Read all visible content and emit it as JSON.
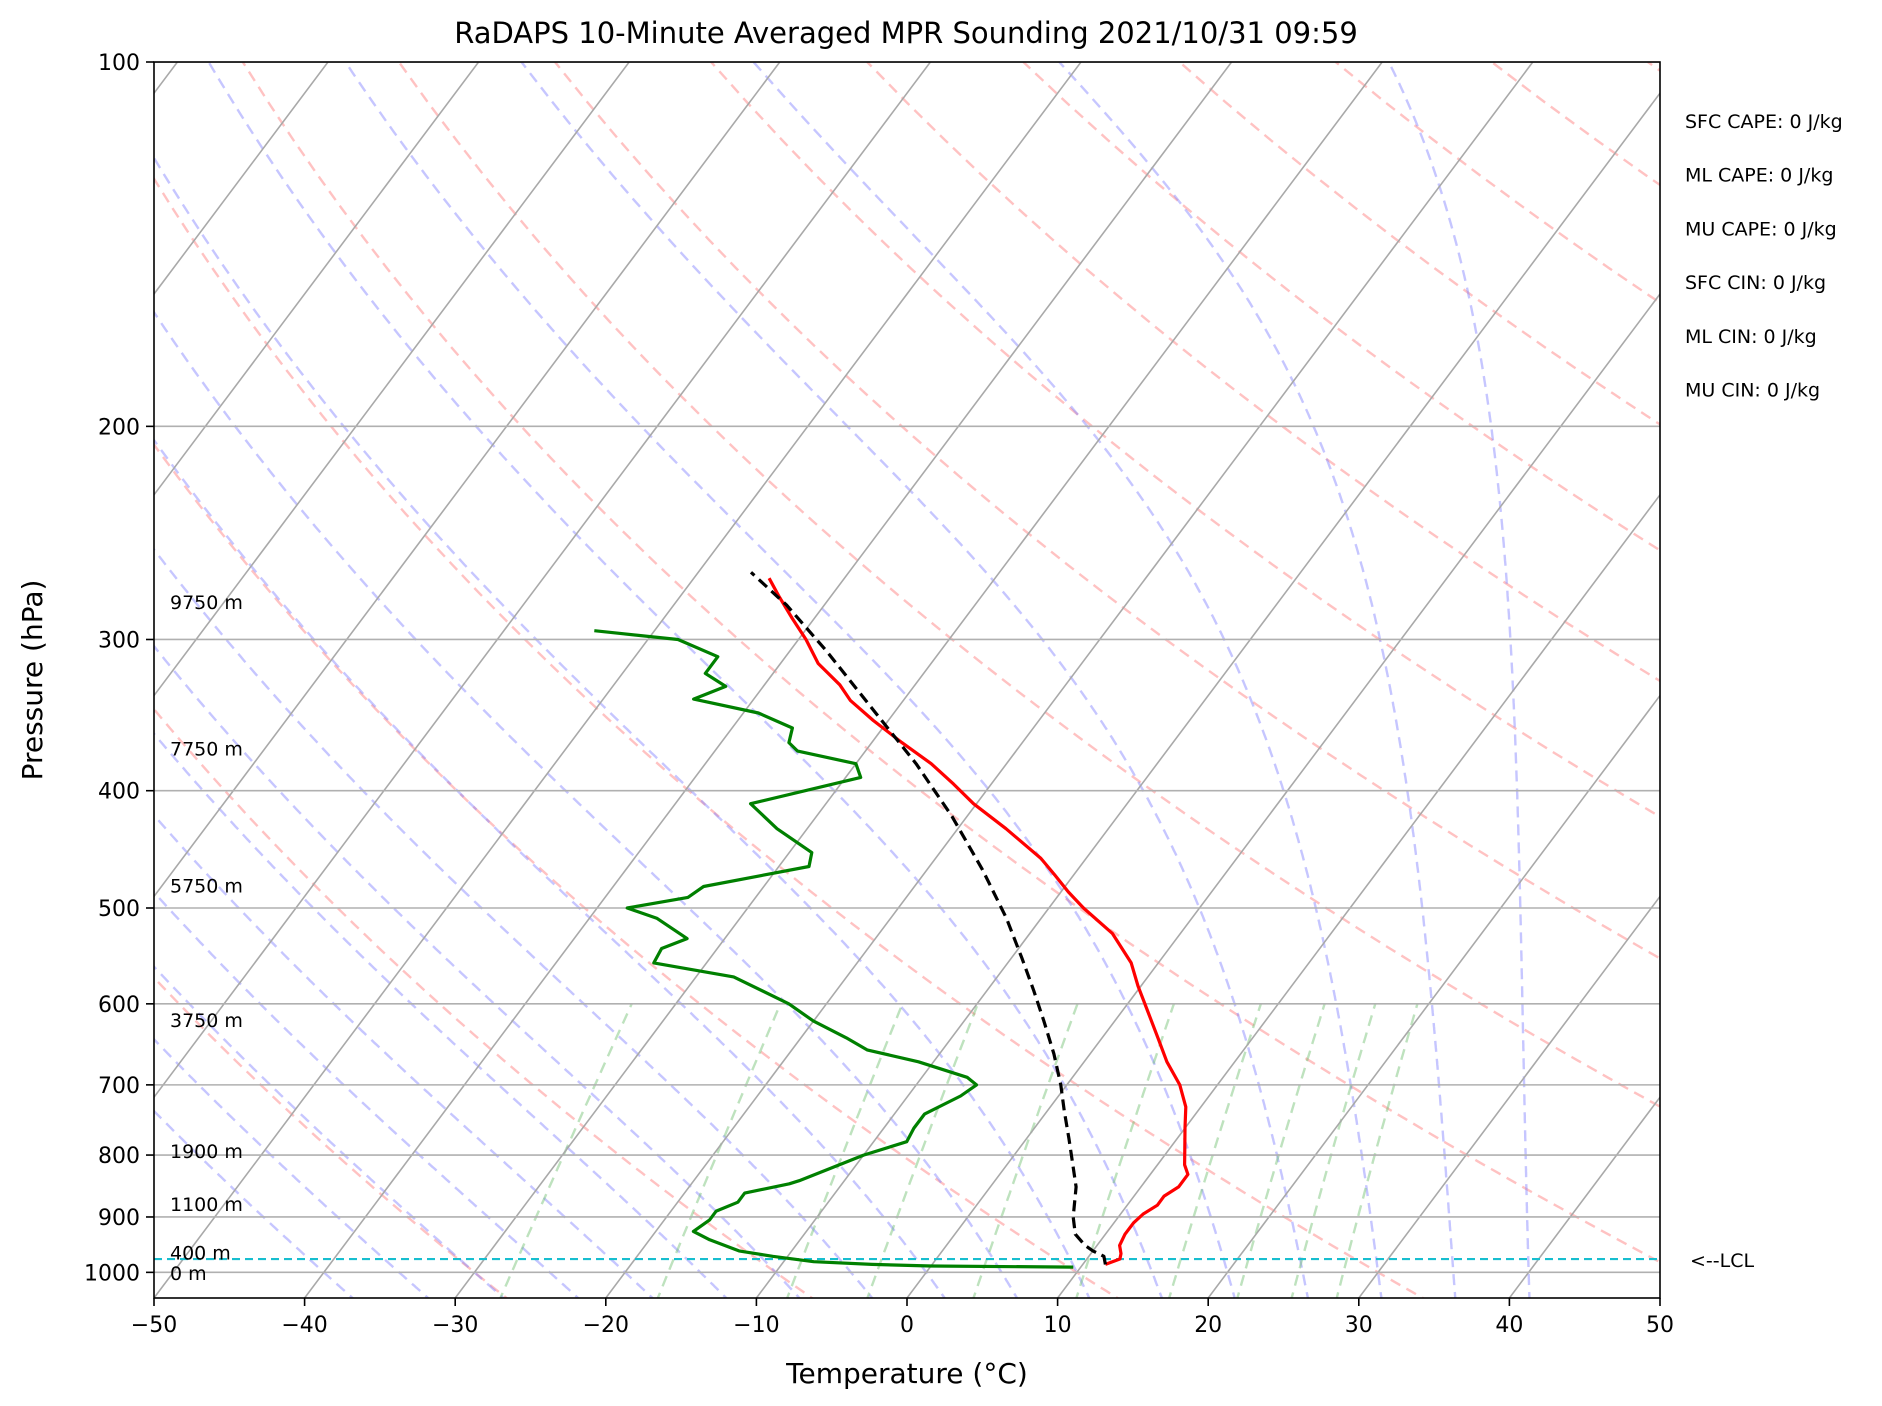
{
  "chart_data": {
    "type": "line",
    "title": "RaDAPS 10-Minute Averaged MPR Sounding 2021/10/31 09:59",
    "xlabel": "Temperature (°C)",
    "ylabel": "Pressure (hPa)",
    "xlim": [
      -50,
      50
    ],
    "ylim": [
      1050,
      100
    ],
    "y_scale": "log",
    "skew": true,
    "grid": true,
    "x_ticks": [
      -50,
      -40,
      -30,
      -20,
      -10,
      0,
      10,
      20,
      30,
      40,
      50
    ],
    "x_tick_labels": [
      "−50",
      "−40",
      "−30",
      "−20",
      "−10",
      "0",
      "10",
      "20",
      "30",
      "40",
      "50"
    ],
    "y_ticks": [
      100,
      200,
      300,
      400,
      500,
      600,
      700,
      800,
      900,
      1000
    ],
    "y_tick_labels": [
      "100",
      "200",
      "300",
      "400",
      "500",
      "600",
      "700",
      "800",
      "900",
      "1000"
    ],
    "series": [
      {
        "role": "temperature",
        "color": "#ff0000",
        "points": [
          [
            11.5,
            985
          ],
          [
            12.2,
            975
          ],
          [
            12.0,
            965
          ],
          [
            11.5,
            950
          ],
          [
            11.3,
            930
          ],
          [
            11.3,
            910
          ],
          [
            11.5,
            895
          ],
          [
            12.0,
            880
          ],
          [
            12.0,
            865
          ],
          [
            12.5,
            850
          ],
          [
            12.5,
            830
          ],
          [
            11.8,
            815
          ],
          [
            11.0,
            790
          ],
          [
            10.0,
            760
          ],
          [
            9.0,
            730
          ],
          [
            7.5,
            700
          ],
          [
            5.5,
            670
          ],
          [
            3.7,
            640
          ],
          [
            1.8,
            610
          ],
          [
            -0.2,
            580
          ],
          [
            -1.8,
            555
          ],
          [
            -4.5,
            525
          ],
          [
            -7.7,
            500
          ],
          [
            -9.5,
            485
          ],
          [
            -11.2,
            470
          ],
          [
            -13.0,
            455
          ],
          [
            -16.8,
            430
          ],
          [
            -20.2,
            410
          ],
          [
            -22.5,
            395
          ],
          [
            -25.0,
            380
          ],
          [
            -28.0,
            365
          ],
          [
            -31.0,
            350
          ],
          [
            -33.5,
            337
          ],
          [
            -35.0,
            327
          ],
          [
            -37.5,
            314
          ],
          [
            -39.5,
            300
          ],
          [
            -41.5,
            288
          ],
          [
            -43.5,
            276
          ],
          [
            -45.0,
            267
          ]
        ]
      },
      {
        "role": "dewpoint",
        "color": "#008000",
        "points": [
          [
            9.5,
            990
          ],
          [
            0.0,
            988
          ],
          [
            -4.0,
            985
          ],
          [
            -8.0,
            980
          ],
          [
            -11.0,
            970
          ],
          [
            -13.5,
            960
          ],
          [
            -16.0,
            940
          ],
          [
            -17.5,
            925
          ],
          [
            -17.0,
            905
          ],
          [
            -17.0,
            890
          ],
          [
            -16.0,
            875
          ],
          [
            -16.0,
            860
          ],
          [
            -13.5,
            845
          ],
          [
            -13.0,
            840
          ],
          [
            -11.5,
            820
          ],
          [
            -10.0,
            800
          ],
          [
            -7.8,
            780
          ],
          [
            -8.0,
            760
          ],
          [
            -8.0,
            740
          ],
          [
            -6.5,
            715
          ],
          [
            -6.0,
            700
          ],
          [
            -7.0,
            690
          ],
          [
            -11.0,
            670
          ],
          [
            -15.0,
            655
          ],
          [
            -17.0,
            640
          ],
          [
            -20.0,
            620
          ],
          [
            -22.5,
            600
          ],
          [
            -27.5,
            570
          ],
          [
            -33.5,
            555
          ],
          [
            -33.7,
            540
          ],
          [
            -32.5,
            530
          ],
          [
            -35.5,
            510
          ],
          [
            -38.0,
            500
          ],
          [
            -34.5,
            490
          ],
          [
            -34.0,
            480
          ],
          [
            -28.0,
            462
          ],
          [
            -28.5,
            450
          ],
          [
            -32.0,
            430
          ],
          [
            -35.0,
            410
          ],
          [
            -29.0,
            390
          ],
          [
            -30.0,
            380
          ],
          [
            -34.5,
            371
          ],
          [
            -35.5,
            365
          ],
          [
            -36.0,
            355
          ],
          [
            -39.0,
            345
          ],
          [
            -44.0,
            336
          ],
          [
            -42.5,
            328
          ],
          [
            -44.5,
            320
          ],
          [
            -44.5,
            310
          ],
          [
            -48.0,
            300
          ],
          [
            -54.0,
            295
          ]
        ]
      },
      {
        "role": "parcel",
        "color": "#000000",
        "dashed": true,
        "points": [
          [
            11.5,
            985
          ],
          [
            11.0,
            970
          ],
          [
            10.0,
            960
          ],
          [
            9.2,
            950
          ],
          [
            8.0,
            930
          ],
          [
            7.0,
            900
          ],
          [
            5.7,
            850
          ],
          [
            3.8,
            800
          ],
          [
            2.8,
            775
          ],
          [
            1.1,
            735
          ],
          [
            -0.4,
            700
          ],
          [
            -2.4,
            660
          ],
          [
            -4.7,
            620
          ],
          [
            -6.9,
            585
          ],
          [
            -9.3,
            550
          ],
          [
            -12.3,
            510
          ],
          [
            -16.3,
            465
          ],
          [
            -21.0,
            420
          ],
          [
            -26.0,
            380
          ],
          [
            -32.0,
            340
          ],
          [
            -37.5,
            307
          ],
          [
            -42.5,
            281
          ],
          [
            -46.5,
            264
          ]
        ]
      }
    ],
    "lcl_pressure": 975,
    "lcl_label": "<--LCL",
    "height_labels": [
      {
        "p": 280,
        "text": "9750 m"
      },
      {
        "p": 370,
        "text": "7750 m"
      },
      {
        "p": 480,
        "text": "5750 m"
      },
      {
        "p": 620,
        "text": "3750 m"
      },
      {
        "p": 795,
        "text": "1900 m"
      },
      {
        "p": 880,
        "text": "1100 m"
      },
      {
        "p": 965,
        "text": "400 m"
      },
      {
        "p": 1003,
        "text": "0 m"
      }
    ],
    "stats": [
      "SFC CAPE: 0 J/kg",
      "ML CAPE: 0 J/kg",
      "MU CAPE: 0 J/kg",
      "SFC CIN: 0 J/kg",
      "ML CIN: 0 J/kg",
      "MU CIN: 0 J/kg"
    ]
  }
}
